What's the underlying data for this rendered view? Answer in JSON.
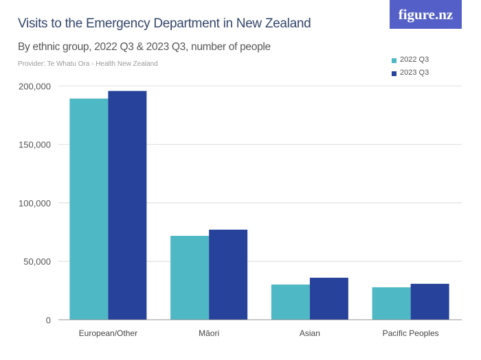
{
  "title": "Visits to the Emergency Department in New Zealand",
  "subtitle": "By ethnic group, 2022 Q3 & 2023 Q3, number of people",
  "provider": "Provider: Te Whatu Ora - Health New Zealand",
  "logo": "figure.nz",
  "chart_data": {
    "type": "bar",
    "title": "Visits to the Emergency Department in New Zealand",
    "categories": [
      "European/Other",
      "Māori",
      "Asian",
      "Pacific Peoples"
    ],
    "series": [
      {
        "name": "2022 Q3",
        "color": "#4fb8c5",
        "values": [
          189200,
          71800,
          30200,
          27800
        ]
      },
      {
        "name": "2023 Q3",
        "color": "#26429b",
        "values": [
          195700,
          77100,
          36000,
          30800
        ]
      }
    ],
    "ylim": [
      0,
      200000
    ],
    "yticks": [
      "0",
      "50,000",
      "100,000",
      "150,000",
      "200,000"
    ],
    "grid": true,
    "legend": "top-right"
  }
}
